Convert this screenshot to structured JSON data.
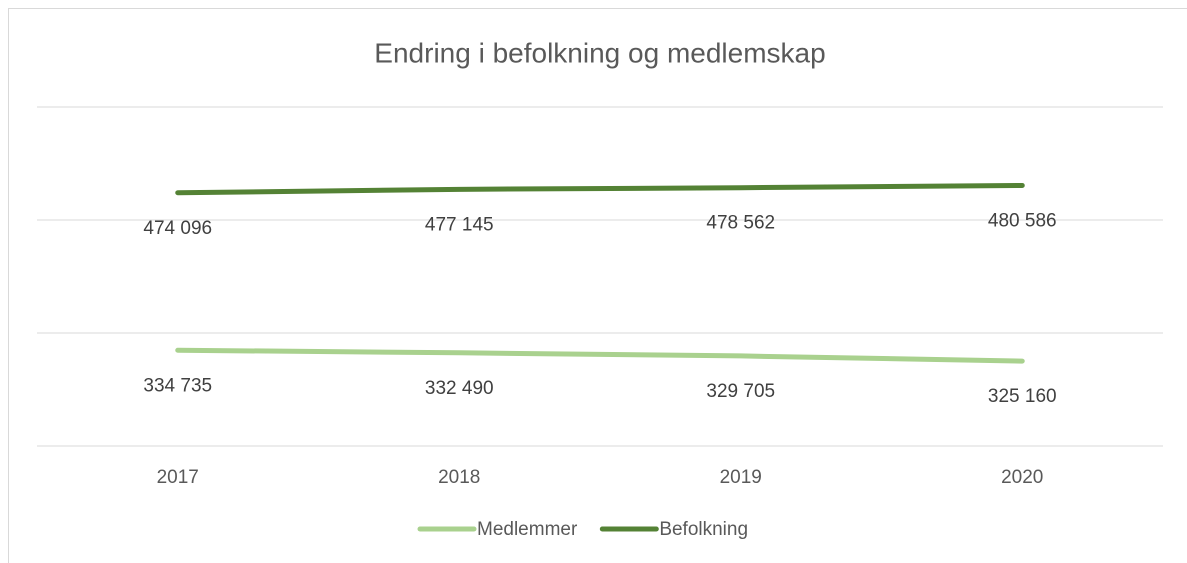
{
  "chart_data": {
    "type": "line",
    "title": "Endring i befolkning og medlemskap",
    "categories": [
      "2017",
      "2018",
      "2019",
      "2020"
    ],
    "series": [
      {
        "name": "Medlemmer",
        "color": "#a9d18e",
        "values": [
          334735,
          332490,
          329705,
          325160
        ],
        "value_labels": [
          "334 735",
          "332 490",
          "329 705",
          "325 160"
        ]
      },
      {
        "name": "Befolkning",
        "color": "#548235",
        "values": [
          474096,
          477145,
          478562,
          480586
        ],
        "value_labels": [
          "474 096",
          "477 145",
          "478 562",
          "480 586"
        ]
      }
    ],
    "ylim": [
      250000,
      550000
    ],
    "yticks": [
      250000,
      350000,
      450000,
      550000
    ],
    "grid": true,
    "legend": "bottom"
  }
}
